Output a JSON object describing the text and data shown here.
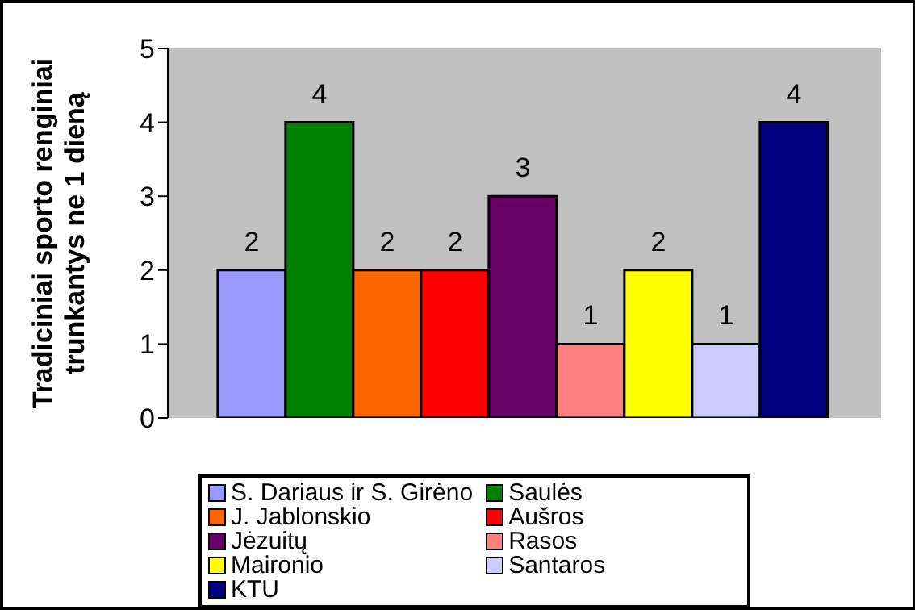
{
  "chart_data": {
    "type": "bar",
    "ylabel": "Tradiciniai sporto renginiai trunkantys ne 1 dieną",
    "categories": [
      null
    ],
    "series": [
      {
        "name": "S. Dariaus ir S. Girėno",
        "color": "#9999ff",
        "values": [
          2
        ]
      },
      {
        "name": "Saulės",
        "color": "#008000",
        "values": [
          4
        ]
      },
      {
        "name": "J. Jablonskio",
        "color": "#ff6600",
        "values": [
          2
        ]
      },
      {
        "name": "Aušros",
        "color": "#ff0000",
        "values": [
          2
        ]
      },
      {
        "name": "Jėzuitų",
        "color": "#660066",
        "values": [
          3
        ]
      },
      {
        "name": "Rasos",
        "color": "#ff8080",
        "values": [
          1
        ]
      },
      {
        "name": "Maironio",
        "color": "#ffff00",
        "values": [
          2
        ]
      },
      {
        "name": "Santaros",
        "color": "#ccccff",
        "values": [
          1
        ]
      },
      {
        "name": "KTU",
        "color": "#000080",
        "values": [
          4
        ]
      }
    ],
    "ylim": [
      0,
      5
    ],
    "yticks": [
      0,
      1,
      2,
      3,
      4,
      5
    ],
    "grid": false,
    "legend": "bottom",
    "data_labels": true
  }
}
